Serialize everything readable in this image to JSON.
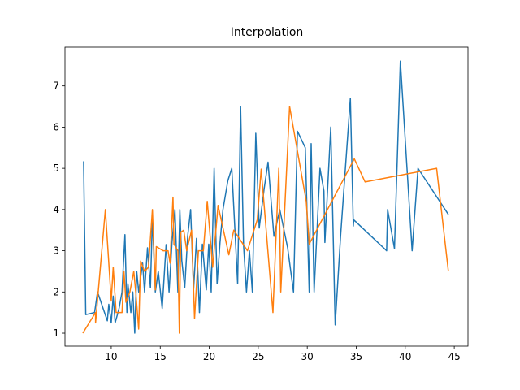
{
  "chart_data": {
    "type": "line",
    "title": "Interpolation",
    "xlim": [
      5.28,
      46.4
    ],
    "ylim": [
      0.685,
      7.94
    ],
    "xticks": [
      10,
      15,
      20,
      25,
      30,
      35,
      40,
      45
    ],
    "yticks": [
      1,
      2,
      3,
      4,
      5,
      6,
      7
    ],
    "series": [
      {
        "color": "#1f77b4",
        "x": [
          7.18,
          7.4,
          8.3,
          8.6,
          9.6,
          9.75,
          10,
          10.2,
          10.4,
          10.8,
          11.1,
          11.4,
          11.6,
          11.7,
          12,
          12.2,
          12.4,
          12.6,
          12.8,
          13.2,
          13.4,
          13.7,
          14,
          14.2,
          14.5,
          14.8,
          15.2,
          15.6,
          15.9,
          16.2,
          16.5,
          16.8,
          17,
          17.2,
          17.5,
          17.8,
          18.1,
          18.4,
          18.7,
          19,
          19.3,
          19.7,
          19.95,
          20.2,
          20.5,
          20.8,
          21.1,
          21.4,
          21.9,
          22.3,
          22.9,
          23.2,
          23.5,
          23.8,
          24.1,
          24.4,
          24.75,
          25.1,
          25.6,
          26,
          26.6,
          27.2,
          28,
          28.6,
          29,
          29.8,
          30.2,
          30.4,
          30.7,
          31.3,
          31.7,
          31.8,
          32.4,
          32.85,
          33.4,
          34.4,
          34.7,
          34.75,
          38.1,
          38.2,
          38.9,
          39.5,
          40.7,
          41.3,
          44.4
        ],
        "values": [
          5.17,
          1.45,
          1.5,
          2.0,
          1.3,
          1.7,
          1.25,
          1.9,
          1.25,
          1.6,
          2.0,
          3.39,
          1.5,
          2.2,
          1.5,
          2.0,
          1.0,
          2.5,
          2.0,
          2.7,
          2.0,
          3.07,
          2.1,
          3.8,
          2.0,
          2.5,
          1.6,
          3.15,
          2.0,
          3.2,
          4.0,
          2.0,
          4.0,
          2.76,
          2.1,
          3.35,
          4.0,
          2.05,
          3.3,
          1.5,
          3.16,
          2.05,
          3.16,
          2.0,
          5.0,
          2.2,
          3.2,
          4.0,
          4.7,
          5.0,
          2.2,
          6.5,
          3.15,
          2.0,
          3.0,
          2.0,
          5.85,
          3.55,
          4.5,
          5.15,
          3.35,
          4.0,
          3.07,
          2.0,
          5.9,
          5.5,
          2.0,
          5.6,
          2.0,
          5.0,
          4.45,
          3.2,
          6.0,
          1.2,
          3.35,
          6.7,
          3.6,
          3.75,
          3.0,
          4.0,
          3.05,
          7.6,
          3.0,
          5.0,
          3.88
        ]
      },
      {
        "color": "#ff7f0e",
        "x": [
          7.1,
          8.4,
          8.4,
          9.4,
          10,
          10.2,
          10.5,
          11.1,
          11.3,
          11.5,
          11.9,
          12.3,
          12.5,
          12.8,
          13,
          13.4,
          13.8,
          14.2,
          14.5,
          14.6,
          15.3,
          15.8,
          16,
          16.3,
          16.4,
          16.8,
          16.95,
          17.1,
          17.4,
          17.7,
          18.2,
          18.5,
          18.9,
          19.4,
          19.8,
          20.35,
          20.9,
          22,
          22.5,
          23.9,
          24.9,
          25.3,
          26.5,
          27.1,
          27.3,
          28.2,
          29.9,
          30.2,
          34.8,
          35.9,
          43.2,
          44.4
        ],
        "values": [
          1.0,
          1.5,
          1.25,
          4.0,
          1.78,
          2.6,
          1.5,
          1.5,
          2.5,
          1.75,
          2.0,
          2.5,
          2.0,
          1.1,
          2.75,
          2.5,
          2.6,
          4.0,
          2.05,
          3.1,
          3.0,
          3.0,
          2.7,
          4.3,
          3.16,
          3.0,
          1.0,
          3.45,
          3.5,
          3.0,
          3.5,
          1.35,
          3.0,
          3.0,
          4.2,
          2.6,
          4.1,
          2.9,
          3.5,
          3.0,
          3.75,
          4.98,
          1.5,
          5.0,
          2.0,
          6.5,
          4.2,
          3.16,
          5.23,
          4.67,
          5.0,
          2.5
        ]
      }
    ]
  }
}
